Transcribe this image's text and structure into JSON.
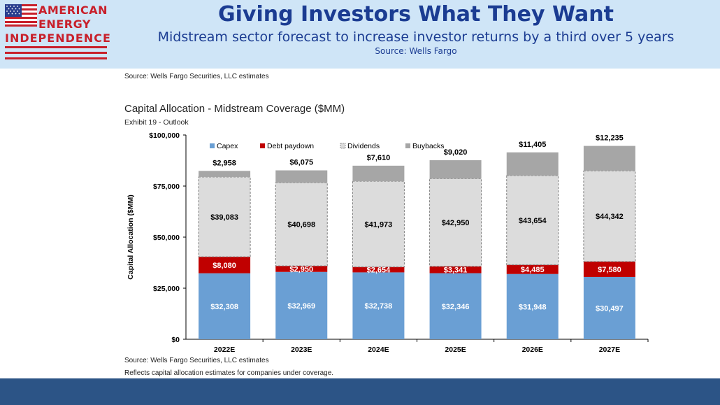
{
  "header": {
    "title": "Giving Investors What They Want",
    "subtitle": "Midstream sector forecast to increase investor returns by a third over 5 years",
    "source": "Source: Wells Fargo",
    "background_color": "#cfe5f7",
    "text_color": "#1b3c92"
  },
  "logo": {
    "line1": "AMERICAN",
    "line2": "ENERGY",
    "line3": "INDEPENDENCE",
    "color": "#c8202b",
    "icon": "us-flag-icon"
  },
  "notes": {
    "top_source": "Source: Wells Fargo Securities, LLC estimates",
    "bottom_source": "Source: Wells Fargo Securities, LLC estimates",
    "bottom_reflects": "Reflects capital allocation estimates for companies under coverage."
  },
  "chart_data": {
    "type": "bar",
    "stacked": true,
    "title": "Capital Allocation - Midstream Coverage ($MM)",
    "subtitle": "Exhibit 19 - Outlook",
    "xlabel": "",
    "ylabel": "Capital Allocation ($MM)",
    "ylim": [
      0,
      100000
    ],
    "yticks": [
      0,
      25000,
      50000,
      75000,
      100000
    ],
    "ytick_labels": [
      "$0",
      "$25,000",
      "$50,000",
      "$75,000",
      "$100,000"
    ],
    "grid": false,
    "legend_position": "top",
    "categories": [
      "2022E",
      "2023E",
      "2024E",
      "2025E",
      "2026E",
      "2027E"
    ],
    "series": [
      {
        "name": "Capex",
        "color": "#6a9fd4",
        "label_color": "#ffffff",
        "values": [
          32308,
          32969,
          32738,
          32346,
          31948,
          30497
        ],
        "labels": [
          "$32,308",
          "$32,969",
          "$32,738",
          "$32,346",
          "$31,948",
          "$30,497"
        ]
      },
      {
        "name": "Debt paydown",
        "color": "#c00000",
        "label_color": "#ffffff",
        "values": [
          8080,
          2950,
          2654,
          3341,
          4485,
          7580
        ],
        "labels": [
          "$8,080",
          "$2,950",
          "$2,654",
          "$3,341",
          "$4,485",
          "$7,580"
        ]
      },
      {
        "name": "Dividends",
        "color": "#dcdcdc",
        "label_color": "#000000",
        "values": [
          39083,
          40698,
          41973,
          42950,
          43654,
          44342
        ],
        "labels": [
          "$39,083",
          "$40,698",
          "$41,973",
          "$42,950",
          "$43,654",
          "$44,342"
        ]
      },
      {
        "name": "Buybacks",
        "color": "#a6a6a6",
        "label_color": "#000000",
        "values": [
          2958,
          6075,
          7610,
          9020,
          11405,
          12235
        ],
        "labels": [
          "$2,958",
          "$6,075",
          "$7,610",
          "$9,020",
          "$11,405",
          "$12,235"
        ]
      }
    ]
  }
}
